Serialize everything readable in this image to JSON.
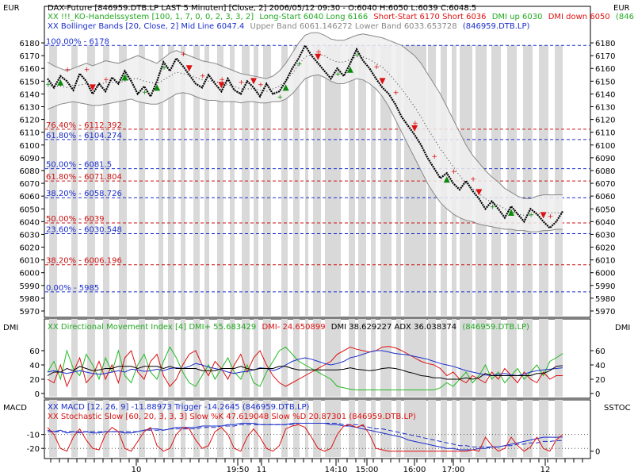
{
  "currency_left": "EUR",
  "currency_right": "EUR",
  "panels": {
    "dmi_label_left": "DMI",
    "dmi_label_right": "DMI",
    "macd_label_left": "MACD",
    "macd_label_right": "SSTOC"
  },
  "header": {
    "line1": "DAX-Future [846959.DTB.LP LAST 5 Minuten] [Close, 2] 2006/05/12 09:30 - O:6040 H:6050 L:6039 C:6048.5",
    "line2_a": "XX !!!_KO-Handelssystem [100, 1, 7, 0, 0, 2, 3, 3, 2]",
    "line2_b": "Long-Start 6040 Long 6166",
    "line2_c": "Short-Start 6170 Short 6036",
    "line2_d": "DMI up 6030",
    "line2_e": "DMI down 6050",
    "line2_f": "(846959",
    "line3_a": "XX Bollinger Bands [20, Close, 2] Mid Line 6047.4",
    "line3_b": "Upper Band 6061.146272 Lower Band 6033.653728",
    "line3_c": "(846959.DTB.LP)"
  },
  "fib_labels": [
    {
      "text": "100.00% - 6178",
      "price": 6178,
      "color": "#1a2ecc"
    },
    {
      "text": "76.40% - 6112.392",
      "price": 6112.392,
      "color": "#cc1111"
    },
    {
      "text": "61.80% - 6104.274",
      "price": 6104.274,
      "color": "#1a2ecc"
    },
    {
      "text": "50.00% - 6081.5",
      "price": 6081.5,
      "color": "#1a2ecc"
    },
    {
      "text": "61.80% - 6071.804",
      "price": 6071.804,
      "color": "#cc1111"
    },
    {
      "text": "38.20% - 6058.726",
      "price": 6058.726,
      "color": "#1a2ecc"
    },
    {
      "text": "50.00% - 6039",
      "price": 6039,
      "color": "#cc1111"
    },
    {
      "text": "23.60% - 6030.548",
      "price": 6030.548,
      "color": "#1a2ecc"
    },
    {
      "text": "38.20% - 6006.196",
      "price": 6006.196,
      "color": "#cc1111"
    },
    {
      "text": "0.00% - 5985",
      "price": 5985,
      "color": "#1a2ecc"
    }
  ],
  "dmi_header": {
    "a": "XX Directional Movement Index [4] DMI+ 55.683429",
    "b": "DMI- 24.650899",
    "c": "DMI 38.629227 ADX 36.038374",
    "d": "(846959.DTB.LP)"
  },
  "macd_header": {
    "a": "XX MACD [12, 26, 9] -11.88973 Trigger -14.2645 (846959.DTB.LP)",
    "b": "XX Stochastic Slow [60, 20, 3, 3, 3] Slow %K 47.619048 Slow %D 20.87301 (846959.DTB.LP)"
  },
  "colors": {
    "price": "#000000",
    "long_marker": "#0a8a0a",
    "short_marker": "#dd1111",
    "dmi_plus": "#22bb22",
    "dmi_minus": "#dd1111",
    "adx": "#1a2ecc",
    "macd": "#1a2ecc",
    "stoch": "#dd1111",
    "band": "#888888",
    "stripe": "#d9d9d9",
    "fib_blue": "#1a2ecc",
    "fib_red": "#cc1111"
  },
  "chart_data": [
    {
      "type": "line",
      "title": "DAX-Future 5 Minuten",
      "ylim": [
        5970,
        6185
      ],
      "y_ticks": [
        5970,
        5980,
        5990,
        6000,
        6010,
        6020,
        6030,
        6040,
        6050,
        6060,
        6070,
        6080,
        6090,
        6100,
        6110,
        6120,
        6130,
        6140,
        6150,
        6160,
        6170,
        6180
      ],
      "x_tick_labels": [
        "10",
        "19:50",
        "11",
        "14:10",
        "15:00",
        "16:00",
        "17:00",
        "12"
      ],
      "series": [
        {
          "name": "DAX-Future Close",
          "values": [
            6152,
            6145,
            6154,
            6150,
            6143,
            6156,
            6150,
            6140,
            6148,
            6142,
            6153,
            6148,
            6158,
            6150,
            6140,
            6146,
            6138,
            6150,
            6165,
            6158,
            6168,
            6162,
            6155,
            6148,
            6145,
            6155,
            6148,
            6142,
            6152,
            6143,
            6140,
            6150,
            6145,
            6138,
            6148,
            6140,
            6142,
            6150,
            6160,
            6168,
            6178,
            6170,
            6164,
            6158,
            6152,
            6160,
            6154,
            6164,
            6175,
            6166,
            6160,
            6152,
            6145,
            6140,
            6132,
            6122,
            6115,
            6108,
            6100,
            6090,
            6082,
            6074,
            6078,
            6070,
            6065,
            6072,
            6064,
            6058,
            6050,
            6056,
            6050,
            6043,
            6052,
            6046,
            6040,
            6050,
            6046,
            6040,
            6035,
            6040,
            6048
          ]
        },
        {
          "name": "Bollinger Upper Band",
          "values": [
            6165,
            6162,
            6160,
            6158,
            6160,
            6162,
            6164,
            6162,
            6164,
            6166,
            6165,
            6164,
            6166,
            6168,
            6170,
            6168,
            6166,
            6164,
            6168,
            6172,
            6174,
            6172,
            6170,
            6168,
            6166,
            6165,
            6164,
            6162,
            6160,
            6158,
            6156,
            6155,
            6154,
            6153,
            6152,
            6154,
            6158,
            6164,
            6172,
            6180,
            6186,
            6188,
            6188,
            6186,
            6183,
            6182,
            6182,
            6184,
            6186,
            6187,
            6186,
            6185,
            6184,
            6182,
            6180,
            6178,
            6174,
            6170,
            6164,
            6156,
            6148,
            6140,
            6130,
            6120,
            6110,
            6100,
            6092,
            6086,
            6080,
            6075,
            6071,
            6066,
            6063,
            6060,
            6058,
            6058,
            6060,
            6061,
            6061,
            6061,
            6061
          ]
        },
        {
          "name": "Bollinger Lower Band",
          "values": [
            6128,
            6130,
            6132,
            6133,
            6134,
            6133,
            6132,
            6131,
            6131,
            6132,
            6133,
            6134,
            6135,
            6136,
            6134,
            6133,
            6132,
            6132,
            6134,
            6137,
            6140,
            6141,
            6140,
            6138,
            6136,
            6135,
            6135,
            6134,
            6134,
            6134,
            6133,
            6134,
            6134,
            6133,
            6133,
            6134,
            6134,
            6136,
            6140,
            6146,
            6152,
            6154,
            6155,
            6153,
            6150,
            6148,
            6148,
            6150,
            6152,
            6151,
            6148,
            6144,
            6138,
            6130,
            6120,
            6110,
            6100,
            6090,
            6080,
            6070,
            6062,
            6055,
            6050,
            6046,
            6043,
            6041,
            6040,
            6038,
            6037,
            6036,
            6035,
            6034,
            6034,
            6033,
            6033,
            6032,
            6032,
            6033,
            6033,
            6034,
            6034
          ]
        },
        {
          "name": "Bollinger Mid Line",
          "values": [
            6146,
            6146,
            6146,
            6145,
            6147,
            6147,
            6148,
            6146,
            6147,
            6149,
            6149,
            6149,
            6150,
            6152,
            6152,
            6150,
            6149,
            6148,
            6151,
            6154,
            6157,
            6156,
            6155,
            6153,
            6151,
            6150,
            6150,
            6148,
            6147,
            6146,
            6144,
            6144,
            6144,
            6143,
            6142,
            6144,
            6146,
            6150,
            6156,
            6163,
            6169,
            6171,
            6171,
            6170,
            6167,
            6165,
            6165,
            6167,
            6169,
            6169,
            6167,
            6164,
            6161,
            6156,
            6150,
            6144,
            6137,
            6130,
            6122,
            6113,
            6105,
            6097,
            6090,
            6083,
            6076,
            6070,
            6066,
            6062,
            6058,
            6055,
            6053,
            6050,
            6048,
            6046,
            6045,
            6045,
            6046,
            6047,
            6047,
            6047,
            6047
          ]
        }
      ]
    },
    {
      "type": "line",
      "title": "Directional Movement Index [4]",
      "ylim": [
        0,
        80
      ],
      "y_ticks": [
        0,
        20,
        40,
        60
      ],
      "series": [
        {
          "name": "DMI+",
          "values": [
            30,
            45,
            20,
            60,
            35,
            25,
            55,
            40,
            20,
            50,
            30,
            60,
            25,
            15,
            40,
            55,
            30,
            20,
            45,
            65,
            50,
            30,
            15,
            10,
            25,
            40,
            20,
            35,
            50,
            30,
            20,
            40,
            15,
            10,
            30,
            45,
            60,
            65,
            55,
            45,
            40,
            35,
            30,
            25,
            20,
            10,
            8,
            6,
            5,
            5,
            5,
            5,
            5,
            5,
            5,
            5,
            5,
            5,
            5,
            5,
            5,
            8,
            15,
            10,
            20,
            30,
            15,
            25,
            40,
            20,
            30,
            15,
            25,
            35,
            20,
            30,
            40,
            25,
            45,
            50,
            56
          ]
        },
        {
          "name": "DMI-",
          "values": [
            20,
            15,
            40,
            10,
            30,
            50,
            15,
            25,
            45,
            20,
            40,
            15,
            50,
            60,
            30,
            20,
            45,
            55,
            25,
            10,
            20,
            40,
            55,
            60,
            40,
            25,
            45,
            35,
            20,
            40,
            55,
            30,
            50,
            60,
            40,
            25,
            15,
            10,
            15,
            20,
            25,
            30,
            35,
            40,
            45,
            55,
            60,
            65,
            62,
            60,
            58,
            60,
            65,
            66,
            64,
            60,
            55,
            50,
            45,
            42,
            40,
            35,
            25,
            30,
            20,
            15,
            25,
            20,
            15,
            30,
            20,
            35,
            25,
            15,
            30,
            20,
            15,
            30,
            20,
            25,
            25
          ]
        },
        {
          "name": "ADX",
          "values": [
            30,
            32,
            30,
            28,
            30,
            32,
            30,
            28,
            27,
            28,
            30,
            32,
            30,
            34,
            33,
            31,
            32,
            34,
            32,
            35,
            36,
            35,
            38,
            42,
            40,
            37,
            35,
            33,
            30,
            28,
            30,
            31,
            33,
            36,
            35,
            32,
            35,
            40,
            45,
            48,
            50,
            48,
            45,
            42,
            40,
            42,
            45,
            50,
            52,
            55,
            58,
            60,
            60,
            58,
            56,
            55,
            54,
            52,
            50,
            48,
            45,
            42,
            40,
            38,
            35,
            32,
            30,
            28,
            26,
            25,
            27,
            28,
            26,
            25,
            27,
            30,
            32,
            33,
            34,
            35,
            36
          ]
        },
        {
          "name": "DMI",
          "values": [
            25,
            30,
            30,
            35,
            32,
            38,
            35,
            32,
            33,
            35,
            35,
            38,
            38,
            38,
            35,
            38,
            38,
            38,
            35,
            38,
            35,
            35,
            35,
            35,
            32,
            32,
            32,
            35,
            35,
            35,
            38,
            35,
            33,
            35,
            35,
            35,
            38,
            38,
            35,
            33,
            33,
            33,
            33,
            33,
            33,
            33,
            34,
            36,
            34,
            33,
            32,
            33,
            35,
            36,
            35,
            33,
            30,
            28,
            25,
            24,
            22,
            22,
            20,
            20,
            20,
            22,
            20,
            22,
            28,
            25,
            25,
            25,
            25,
            25,
            25,
            25,
            28,
            28,
            32,
            38,
            39
          ]
        }
      ]
    },
    {
      "type": "line",
      "title": "MACD [12, 26, 9] / Stochastic Slow",
      "ylim": [
        -25,
        0
      ],
      "y_ticks": [
        -20,
        -10
      ],
      "series": [
        {
          "name": "MACD",
          "values": [
            -7,
            -8,
            -7,
            -9,
            -8,
            -9,
            -8,
            -9,
            -9,
            -8,
            -8,
            -8,
            -9,
            -9,
            -8,
            -7,
            -6,
            -6,
            -7,
            -6,
            -5,
            -5,
            -5,
            -5,
            -4,
            -4,
            -4,
            -4,
            -3,
            -3,
            -2,
            -2,
            -2,
            -3,
            -3,
            -3,
            -3,
            -3,
            -2,
            -2,
            -2,
            -2,
            -2,
            -2,
            -3,
            -3,
            -4,
            -4,
            -5,
            -6,
            -7,
            -8,
            -9,
            -10,
            -11,
            -12,
            -14,
            -15,
            -16,
            -17,
            -18,
            -19,
            -20,
            -20,
            -21,
            -21,
            -21,
            -20,
            -20,
            -19,
            -19,
            -18,
            -17,
            -16,
            -15,
            -14,
            -13,
            -12,
            -12,
            -12,
            -11.89
          ]
        },
        {
          "name": "MACD Trigger",
          "values": [
            -8,
            -8,
            -8,
            -8,
            -8,
            -8,
            -8,
            -8,
            -8,
            -8,
            -8,
            -8,
            -8,
            -8,
            -8,
            -7,
            -7,
            -7,
            -7,
            -6,
            -6,
            -6,
            -6,
            -6,
            -5,
            -5,
            -5,
            -4,
            -4,
            -4,
            -3,
            -3,
            -3,
            -3,
            -3,
            -3,
            -3,
            -3,
            -3,
            -2,
            -2,
            -2,
            -2,
            -2,
            -2,
            -2,
            -3,
            -3,
            -3,
            -4,
            -5,
            -6,
            -6,
            -7,
            -8,
            -9,
            -10,
            -11,
            -12,
            -13,
            -14,
            -15,
            -16,
            -17,
            -18,
            -18,
            -19,
            -19,
            -19,
            -19,
            -19,
            -18,
            -18,
            -17,
            -17,
            -16,
            -16,
            -15,
            -15,
            -14.5,
            -14.26
          ]
        },
        {
          "name": "Stochastic Slow",
          "values": [
            -5,
            -10,
            -20,
            -22,
            -12,
            -6,
            -14,
            -20,
            -21,
            -10,
            -5,
            -8,
            -20,
            -22,
            -15,
            -8,
            -5,
            -18,
            -22,
            -20,
            -10,
            -5,
            -6,
            -14,
            -20,
            -18,
            -8,
            -5,
            -10,
            -20,
            -22,
            -12,
            -6,
            -12,
            -20,
            -22,
            -18,
            -6,
            -4,
            -3,
            -5,
            -12,
            -20,
            -22,
            -20,
            -10,
            -4,
            -3,
            -5,
            -3,
            -10,
            -20,
            -21,
            -22,
            -22,
            -22,
            -22,
            -22,
            -22,
            -22,
            -22,
            -22,
            -22,
            -22,
            -22,
            -22,
            -21,
            -22,
            -12,
            -18,
            -22,
            -20,
            -12,
            -18,
            -22,
            -19,
            -12,
            -20,
            -22,
            -14,
            -10
          ]
        }
      ]
    }
  ]
}
